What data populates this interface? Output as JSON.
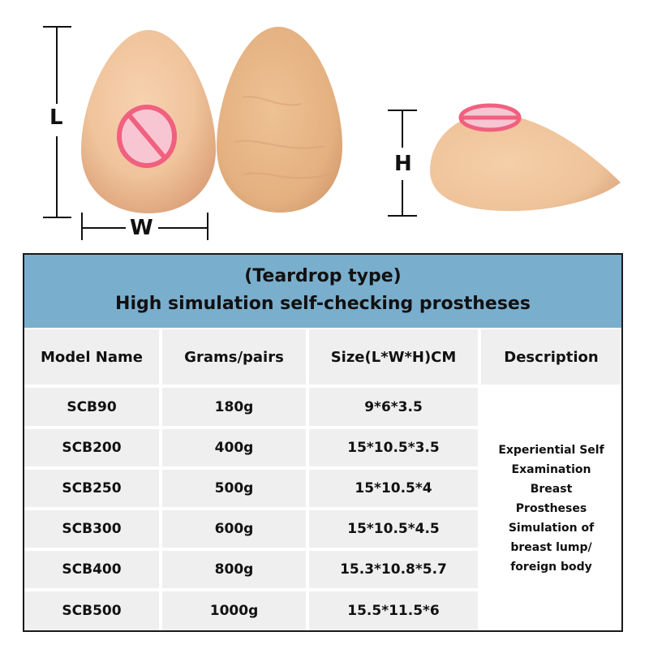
{
  "dimensions": {
    "length_label": "L",
    "width_label": "W",
    "height_label": "H"
  },
  "table": {
    "title_line1": "(Teardrop type)",
    "title_line2": "High simulation self-checking prostheses",
    "headers": [
      "Model Name",
      "Grams/pairs",
      "Size(L*W*H)CM",
      "Description"
    ],
    "rows": [
      [
        "SCB90",
        "180g",
        "9*6*3.5"
      ],
      [
        "SCB200",
        "400g",
        "15*10.5*3.5"
      ],
      [
        "SCB250",
        "500g",
        "15*10.5*4"
      ],
      [
        "SCB300",
        "600g",
        "15*10.5*4.5"
      ],
      [
        "SCB400",
        "800g",
        "15.3*10.8*5.7"
      ],
      [
        "SCB500",
        "1000g",
        "15.5*11.5*6"
      ]
    ],
    "description_lines": [
      "Experiential Self",
      "Examination",
      "Breast",
      "Prostheses",
      "Simulation of",
      "breast lump/",
      "foreign body"
    ]
  },
  "colors": {
    "header_bg": "#7aaecd",
    "cell_bg": "#efefef",
    "censor_pink": "#f0607f",
    "silicone": "#f2c9a0"
  }
}
